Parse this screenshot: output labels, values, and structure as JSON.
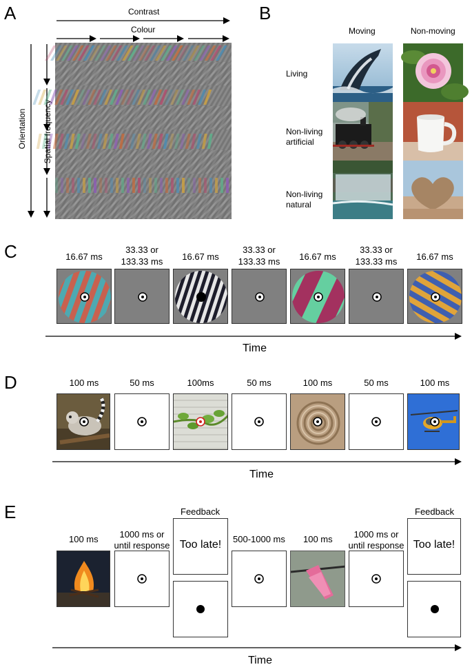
{
  "panels": {
    "a": "A",
    "b": "B",
    "c": "C",
    "d": "D",
    "e": "E"
  },
  "panel_a": {
    "contrast": "Contrast",
    "colour": "Colour",
    "orientation": "Orientation",
    "spatial_frequency": "Spatial frequency"
  },
  "panel_b": {
    "col_moving": "Moving",
    "col_nonmoving": "Non-moving",
    "row_living": "Living",
    "row_artificial_1": "Non-living",
    "row_artificial_2": "artificial",
    "row_natural_1": "Non-living",
    "row_natural_2": "natural"
  },
  "panel_c": {
    "durations": [
      [
        "16.67 ms",
        ""
      ],
      [
        "33.33 or",
        "133.33 ms"
      ],
      [
        "16.67 ms",
        ""
      ],
      [
        "33.33 or",
        "133.33 ms"
      ],
      [
        "16.67 ms",
        ""
      ],
      [
        "33.33 or",
        "133.33 ms"
      ],
      [
        "16.67 ms",
        ""
      ]
    ],
    "time": "Time"
  },
  "panel_d": {
    "durations": [
      "100 ms",
      "50 ms",
      "100ms",
      "50 ms",
      "100 ms",
      "50 ms",
      "100 ms"
    ],
    "time": "Time"
  },
  "panel_e": {
    "dur_1": "100 ms",
    "dur_2_line1": "1000 ms or",
    "dur_2_line2": "until response",
    "feedback_1": "Feedback",
    "too_late_1": "Too late!",
    "dur_3": "500-1000 ms",
    "dur_4": "100 ms",
    "dur_5_line1": "1000 ms or",
    "dur_5_line2": "until response",
    "feedback_2": "Feedback",
    "too_late_2": "Too late!",
    "time": "Time"
  },
  "colors": {
    "grey_bg": "#808080",
    "grating_red_teal": [
      "#c8614f",
      "#4ea9b1"
    ],
    "grating_bw": [
      "#1d1d2b",
      "#e6e6e6"
    ],
    "grating_magenta_green": [
      "#a3315f",
      "#65cfa0"
    ],
    "grating_orange_blue": [
      "#e0a43a",
      "#3f5fb0"
    ]
  }
}
